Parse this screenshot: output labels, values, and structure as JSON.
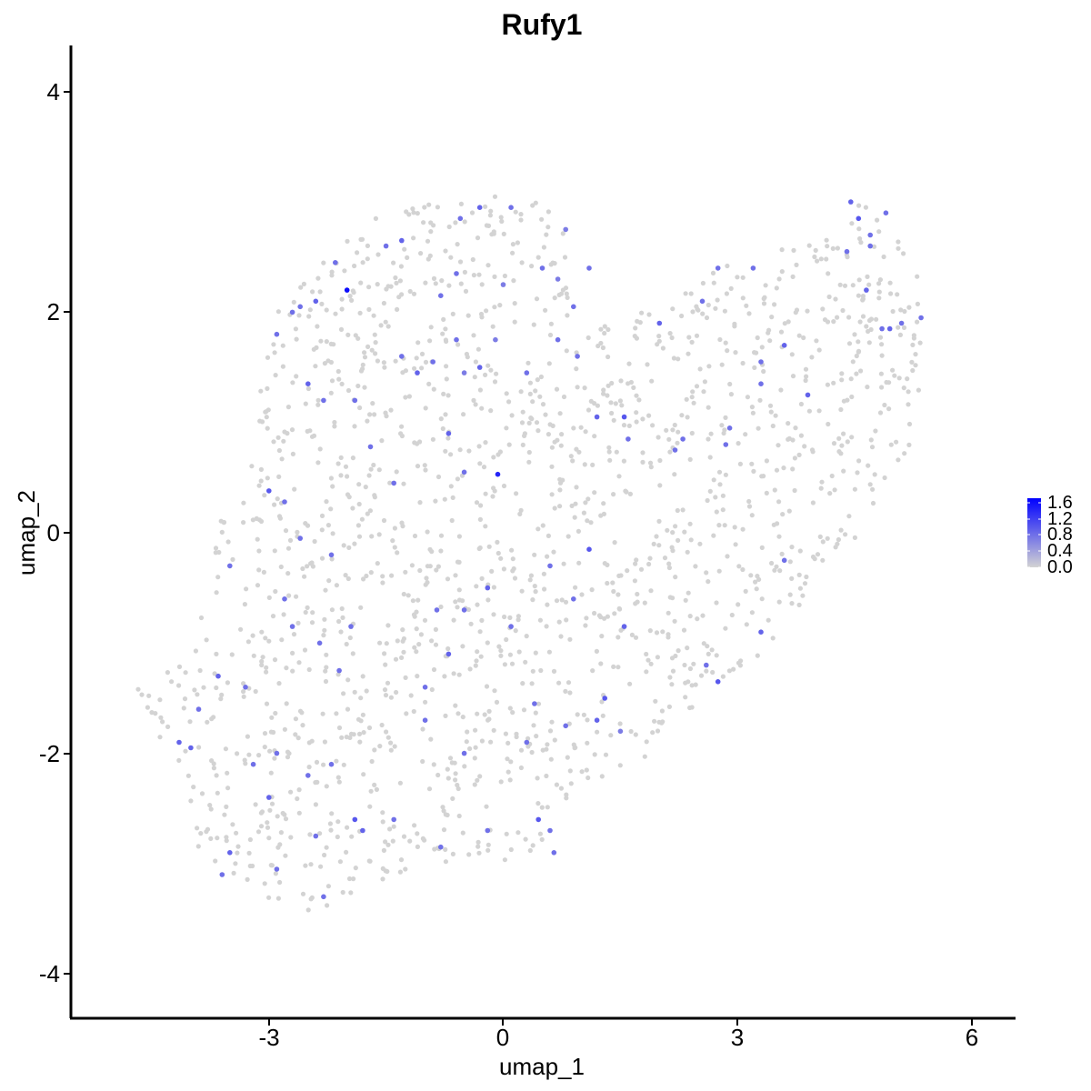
{
  "chart_data": {
    "type": "scatter",
    "title": "Rufy1",
    "xlabel": "umap_1",
    "ylabel": "umap_2",
    "xlim": [
      -5.9,
      6.6
    ],
    "ylim": [
      -4.35,
      4.4
    ],
    "xticks": [
      -3,
      0,
      3,
      6
    ],
    "yticks": [
      -4,
      -2,
      0,
      2,
      4
    ],
    "xtick_labels": [
      "-3",
      "0",
      "3",
      "6"
    ],
    "ytick_labels": [
      "-4",
      "-2",
      "0",
      "2",
      "4"
    ],
    "grid": false,
    "colorscale": {
      "low_color": "#d3d3d3",
      "high_color": "#0000ff",
      "range": [
        0,
        1.7
      ],
      "ticks": [
        1.6,
        1.2,
        0.8,
        0.4,
        0.0
      ],
      "tick_labels": [
        "1.6",
        "1.2",
        "0.8",
        "0.4",
        "0.0"
      ]
    },
    "expressing_points": [
      [
        -2.0,
        2.2,
        1.6
      ],
      [
        -0.07,
        0.53,
        1.4
      ],
      [
        -2.4,
        2.1,
        0.9
      ],
      [
        -2.6,
        2.05,
        0.8
      ],
      [
        -2.9,
        1.8,
        0.8
      ],
      [
        -1.3,
        2.65,
        0.9
      ],
      [
        -0.55,
        2.85,
        0.8
      ],
      [
        -0.3,
        2.95,
        0.9
      ],
      [
        0.1,
        2.95,
        0.8
      ],
      [
        0.8,
        2.75,
        0.7
      ],
      [
        -0.6,
        2.35,
        0.8
      ],
      [
        -0.8,
        2.15,
        0.8
      ],
      [
        0.0,
        2.25,
        0.7
      ],
      [
        0.5,
        2.4,
        0.8
      ],
      [
        0.7,
        2.3,
        0.7
      ],
      [
        -1.1,
        1.45,
        0.9
      ],
      [
        -0.6,
        1.75,
        0.8
      ],
      [
        -0.3,
        1.5,
        0.9
      ],
      [
        -0.1,
        1.75,
        0.7
      ],
      [
        0.3,
        1.45,
        0.8
      ],
      [
        -2.5,
        1.35,
        0.9
      ],
      [
        -2.3,
        1.2,
        0.8
      ],
      [
        -1.9,
        1.2,
        0.8
      ],
      [
        -1.3,
        1.6,
        0.8
      ],
      [
        -0.9,
        1.55,
        0.8
      ],
      [
        -0.5,
        1.45,
        0.7
      ],
      [
        -0.7,
        0.9,
        0.9
      ],
      [
        -0.5,
        0.55,
        0.8
      ],
      [
        0.95,
        1.6,
        0.8
      ],
      [
        0.7,
        1.75,
        0.8
      ],
      [
        1.2,
        1.05,
        0.9
      ],
      [
        1.55,
        1.05,
        1.0
      ],
      [
        1.6,
        0.85,
        0.8
      ],
      [
        -1.4,
        0.45,
        0.8
      ],
      [
        -1.7,
        0.78,
        0.8
      ],
      [
        -3.0,
        0.38,
        1.0
      ],
      [
        -2.8,
        0.28,
        0.8
      ],
      [
        -2.6,
        -0.05,
        0.8
      ],
      [
        -2.2,
        -0.2,
        0.8
      ],
      [
        -3.5,
        -0.3,
        0.8
      ],
      [
        -2.8,
        -0.6,
        0.8
      ],
      [
        -2.7,
        -0.85,
        0.8
      ],
      [
        -2.35,
        -1.0,
        0.8
      ],
      [
        -1.95,
        -0.85,
        0.8
      ],
      [
        -2.1,
        -1.25,
        0.8
      ],
      [
        -3.3,
        -1.4,
        0.8
      ],
      [
        -3.65,
        -1.3,
        0.9
      ],
      [
        -3.9,
        -1.6,
        0.8
      ],
      [
        -4.15,
        -1.9,
        0.9
      ],
      [
        -4.0,
        -1.95,
        0.9
      ],
      [
        -3.2,
        -2.1,
        0.8
      ],
      [
        -2.9,
        -2.0,
        0.8
      ],
      [
        -3.0,
        -2.4,
        0.9
      ],
      [
        -2.5,
        -2.2,
        0.8
      ],
      [
        -2.2,
        -2.1,
        0.8
      ],
      [
        -1.9,
        -2.6,
        1.0
      ],
      [
        -1.8,
        -2.7,
        0.9
      ],
      [
        -1.4,
        -2.6,
        0.8
      ],
      [
        -2.4,
        -2.75,
        0.8
      ],
      [
        -2.3,
        -3.3,
        0.8
      ],
      [
        -2.9,
        -3.05,
        0.8
      ],
      [
        -3.5,
        -2.9,
        0.9
      ],
      [
        -3.6,
        -3.1,
        0.8
      ],
      [
        -1.0,
        -1.7,
        0.8
      ],
      [
        -0.5,
        -2.0,
        0.8
      ],
      [
        -0.2,
        -2.7,
        0.8
      ],
      [
        0.45,
        -2.6,
        1.0
      ],
      [
        0.6,
        -2.7,
        0.8
      ],
      [
        0.65,
        -2.9,
        0.8
      ],
      [
        -0.8,
        -2.85,
        0.8
      ],
      [
        0.3,
        -1.9,
        0.8
      ],
      [
        0.4,
        -1.55,
        0.8
      ],
      [
        0.8,
        -1.75,
        0.8
      ],
      [
        1.2,
        -1.7,
        0.9
      ],
      [
        1.3,
        -1.5,
        1.0
      ],
      [
        1.5,
        -1.8,
        0.7
      ],
      [
        0.9,
        -0.6,
        0.8
      ],
      [
        1.1,
        -0.15,
        1.0
      ],
      [
        0.6,
        -0.3,
        0.8
      ],
      [
        0.1,
        -0.85,
        0.8
      ],
      [
        -0.2,
        -0.5,
        0.9
      ],
      [
        -0.5,
        -0.7,
        0.8
      ],
      [
        -0.85,
        -0.7,
        0.8
      ],
      [
        -0.7,
        -1.1,
        0.9
      ],
      [
        -1.0,
        -1.4,
        0.8
      ],
      [
        1.55,
        -0.85,
        0.9
      ],
      [
        2.6,
        -1.2,
        0.8
      ],
      [
        2.75,
        -1.35,
        1.0
      ],
      [
        3.3,
        -0.9,
        0.9
      ],
      [
        3.6,
        -0.25,
        0.8
      ],
      [
        3.3,
        1.35,
        0.8
      ],
      [
        3.3,
        1.55,
        0.8
      ],
      [
        3.6,
        1.7,
        0.9
      ],
      [
        3.9,
        1.25,
        0.9
      ],
      [
        2.9,
        0.95,
        0.8
      ],
      [
        2.85,
        0.8,
        0.8
      ],
      [
        2.3,
        0.85,
        0.8
      ],
      [
        2.2,
        0.75,
        0.8
      ],
      [
        2.0,
        1.9,
        0.9
      ],
      [
        2.55,
        2.1,
        0.8
      ],
      [
        2.75,
        2.4,
        0.8
      ],
      [
        3.2,
        2.4,
        0.8
      ],
      [
        4.45,
        3.0,
        0.9
      ],
      [
        4.55,
        2.85,
        1.0
      ],
      [
        4.7,
        2.7,
        0.8
      ],
      [
        4.9,
        2.9,
        0.8
      ],
      [
        4.4,
        2.55,
        0.8
      ],
      [
        4.65,
        2.2,
        0.9
      ],
      [
        4.95,
        1.85,
        0.9
      ],
      [
        5.1,
        1.9,
        0.8
      ],
      [
        5.35,
        1.95,
        0.8
      ],
      [
        4.85,
        1.85,
        0.8
      ],
      [
        4.7,
        2.6,
        0.8
      ],
      [
        1.1,
        2.4,
        0.8
      ],
      [
        0.9,
        2.05,
        0.8
      ],
      [
        -1.5,
        2.6,
        0.8
      ],
      [
        -2.15,
        2.45,
        0.8
      ],
      [
        -2.7,
        2.0,
        0.8
      ]
    ]
  }
}
